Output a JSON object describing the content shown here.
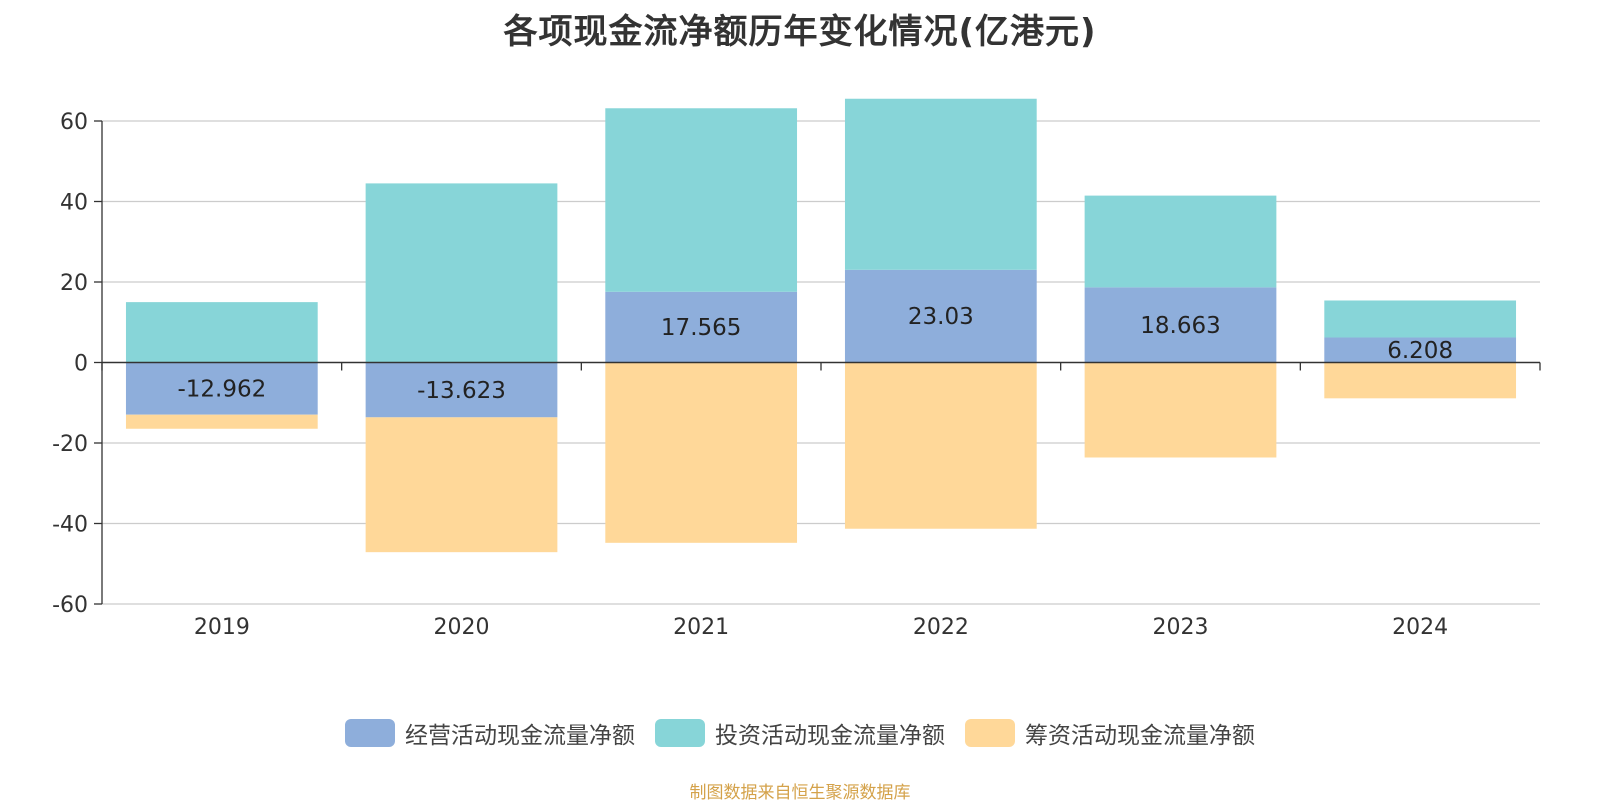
{
  "colors": {
    "operating": "#8eaedb",
    "investing": "#87d5d8",
    "financing": "#ffd899",
    "grid": "#cccccc",
    "axis": "#333333",
    "title": "#333333",
    "source": "#d4a24a"
  },
  "chart_data": {
    "type": "bar",
    "stacked": true,
    "title": "各项现金流净额历年变化情况(亿港元)",
    "categories": [
      "2019",
      "2020",
      "2021",
      "2022",
      "2023",
      "2024"
    ],
    "series": [
      {
        "name": "经营活动现金流量净额",
        "values": [
          -12.962,
          -13.623,
          17.565,
          23.03,
          18.663,
          6.208
        ],
        "labels": [
          "-12.962",
          "-13.623",
          "17.565",
          "23.03",
          "18.663",
          "6.208"
        ]
      },
      {
        "name": "投资活动现金流量净额",
        "values": [
          15.0,
          44.5,
          45.6,
          42.5,
          22.8,
          9.2
        ]
      },
      {
        "name": "筹资活动现金流量净额",
        "values": [
          -3.5,
          -33.5,
          -44.8,
          -41.3,
          -23.6,
          -8.9
        ]
      }
    ],
    "ylim": [
      -60,
      60
    ],
    "yticks": [
      "60",
      "40",
      "20",
      "0",
      "-20",
      "-40",
      "-60"
    ],
    "grid": true,
    "legend_position": "bottom"
  },
  "source_note": "制图数据来自恒生聚源数据库"
}
